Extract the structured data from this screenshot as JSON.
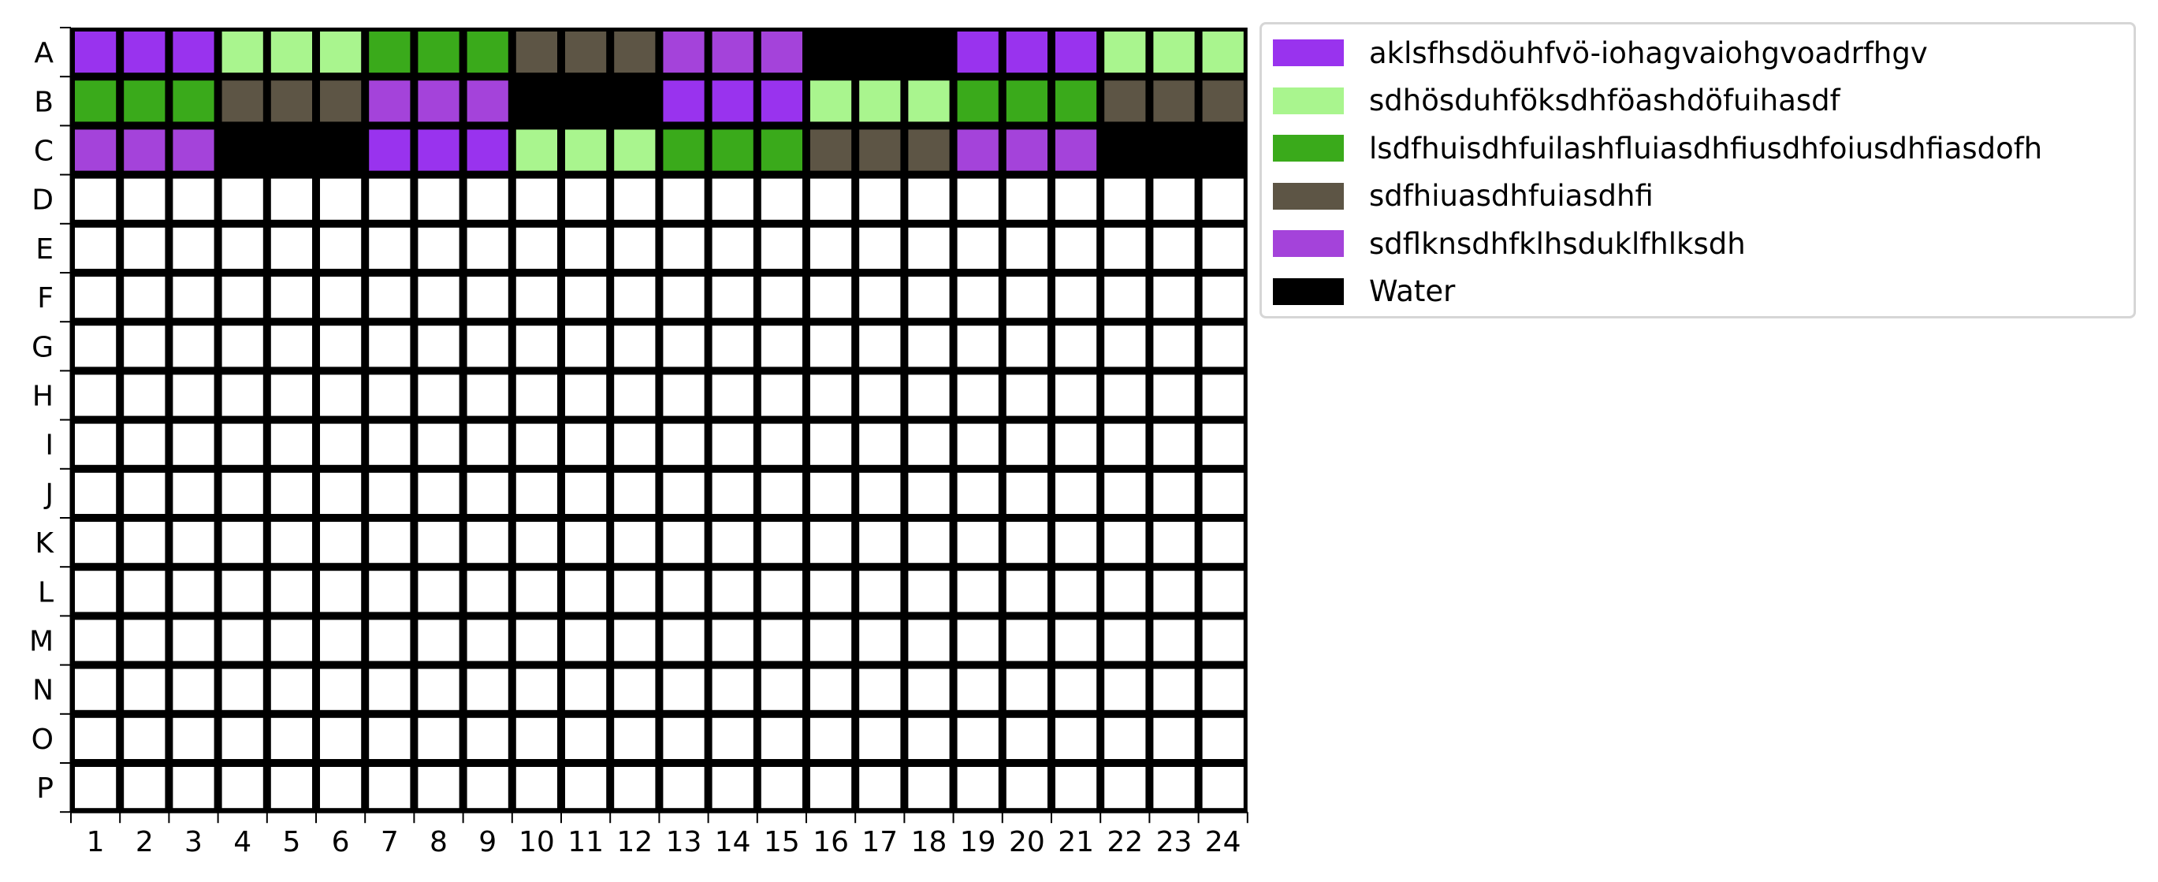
{
  "chart_data": {
    "type": "heatmap",
    "title": "",
    "xlabel": "",
    "ylabel": "",
    "rows": [
      "A",
      "B",
      "C",
      "D",
      "E",
      "F",
      "G",
      "H",
      "I",
      "J",
      "K",
      "L",
      "M",
      "N",
      "O",
      "P"
    ],
    "columns": [
      "1",
      "2",
      "3",
      "4",
      "5",
      "6",
      "7",
      "8",
      "9",
      "10",
      "11",
      "12",
      "13",
      "14",
      "15",
      "16",
      "17",
      "18",
      "19",
      "20",
      "21",
      "22",
      "23",
      "24"
    ],
    "legend": [
      {
        "label": "aklsfhsdöuhfvö-iohagvaiohgvoadrfhgv",
        "color": "#9933ee"
      },
      {
        "label": "sdhösduhföksdhföashdöfuihasdf",
        "color": "#a9f58e"
      },
      {
        "label": "lsdfhuisdhfuilashfluiasdhfiusdhfoiusdhfiasdofh",
        "color": "#3aaa1b"
      },
      {
        "label": "sdfhiuasdhfuiasdhfi",
        "color": "#5d5545"
      },
      {
        "label": "sdflknsdhfklhsduklfhlksdh",
        "color": "#a443da"
      },
      {
        "label": "Water",
        "color": "#000000"
      }
    ],
    "empty_color": "#ffffff",
    "legend_position": "upper right, outside plot",
    "cells": [
      [
        0,
        0,
        0,
        1,
        1,
        1,
        2,
        2,
        2,
        3,
        3,
        3,
        4,
        4,
        4,
        5,
        5,
        5,
        0,
        0,
        0,
        1,
        1,
        1
      ],
      [
        2,
        2,
        2,
        3,
        3,
        3,
        4,
        4,
        4,
        5,
        5,
        5,
        0,
        0,
        0,
        1,
        1,
        1,
        2,
        2,
        2,
        3,
        3,
        3
      ],
      [
        4,
        4,
        4,
        5,
        5,
        5,
        0,
        0,
        0,
        1,
        1,
        1,
        2,
        2,
        2,
        3,
        3,
        3,
        4,
        4,
        4,
        5,
        5,
        5
      ],
      [
        null,
        null,
        null,
        null,
        null,
        null,
        null,
        null,
        null,
        null,
        null,
        null,
        null,
        null,
        null,
        null,
        null,
        null,
        null,
        null,
        null,
        null,
        null,
        null
      ],
      [
        null,
        null,
        null,
        null,
        null,
        null,
        null,
        null,
        null,
        null,
        null,
        null,
        null,
        null,
        null,
        null,
        null,
        null,
        null,
        null,
        null,
        null,
        null,
        null
      ],
      [
        null,
        null,
        null,
        null,
        null,
        null,
        null,
        null,
        null,
        null,
        null,
        null,
        null,
        null,
        null,
        null,
        null,
        null,
        null,
        null,
        null,
        null,
        null,
        null
      ],
      [
        null,
        null,
        null,
        null,
        null,
        null,
        null,
        null,
        null,
        null,
        null,
        null,
        null,
        null,
        null,
        null,
        null,
        null,
        null,
        null,
        null,
        null,
        null,
        null
      ],
      [
        null,
        null,
        null,
        null,
        null,
        null,
        null,
        null,
        null,
        null,
        null,
        null,
        null,
        null,
        null,
        null,
        null,
        null,
        null,
        null,
        null,
        null,
        null,
        null
      ],
      [
        null,
        null,
        null,
        null,
        null,
        null,
        null,
        null,
        null,
        null,
        null,
        null,
        null,
        null,
        null,
        null,
        null,
        null,
        null,
        null,
        null,
        null,
        null,
        null
      ],
      [
        null,
        null,
        null,
        null,
        null,
        null,
        null,
        null,
        null,
        null,
        null,
        null,
        null,
        null,
        null,
        null,
        null,
        null,
        null,
        null,
        null,
        null,
        null,
        null
      ],
      [
        null,
        null,
        null,
        null,
        null,
        null,
        null,
        null,
        null,
        null,
        null,
        null,
        null,
        null,
        null,
        null,
        null,
        null,
        null,
        null,
        null,
        null,
        null,
        null
      ],
      [
        null,
        null,
        null,
        null,
        null,
        null,
        null,
        null,
        null,
        null,
        null,
        null,
        null,
        null,
        null,
        null,
        null,
        null,
        null,
        null,
        null,
        null,
        null,
        null
      ],
      [
        null,
        null,
        null,
        null,
        null,
        null,
        null,
        null,
        null,
        null,
        null,
        null,
        null,
        null,
        null,
        null,
        null,
        null,
        null,
        null,
        null,
        null,
        null,
        null
      ],
      [
        null,
        null,
        null,
        null,
        null,
        null,
        null,
        null,
        null,
        null,
        null,
        null,
        null,
        null,
        null,
        null,
        null,
        null,
        null,
        null,
        null,
        null,
        null,
        null
      ],
      [
        null,
        null,
        null,
        null,
        null,
        null,
        null,
        null,
        null,
        null,
        null,
        null,
        null,
        null,
        null,
        null,
        null,
        null,
        null,
        null,
        null,
        null,
        null,
        null
      ],
      [
        null,
        null,
        null,
        null,
        null,
        null,
        null,
        null,
        null,
        null,
        null,
        null,
        null,
        null,
        null,
        null,
        null,
        null,
        null,
        null,
        null,
        null,
        null,
        null
      ]
    ]
  }
}
